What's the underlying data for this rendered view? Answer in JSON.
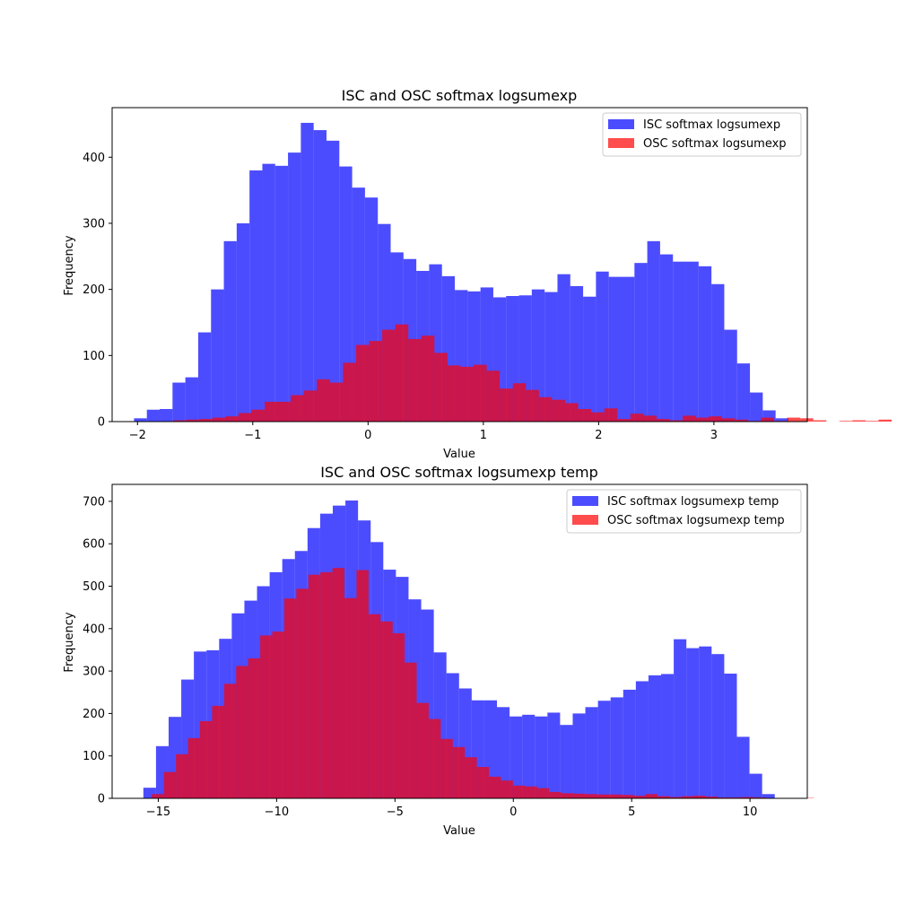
{
  "chart_data": [
    {
      "type": "bar",
      "title": "ISC and OSC softmax logsumexp",
      "xlabel": "Value",
      "ylabel": "Frequency",
      "xlim": [
        -2.22,
        3.81
      ],
      "ylim": [
        0,
        475
      ],
      "xticks": [
        -2,
        -1,
        0,
        1,
        2,
        3
      ],
      "yticks": [
        0,
        100,
        200,
        300,
        400
      ],
      "xtick_labels": [
        "−2",
        "−1",
        "0",
        "1",
        "2",
        "3"
      ],
      "ytick_labels": [
        "0",
        "100",
        "200",
        "300",
        "400"
      ],
      "legend_position": "top-right",
      "series": [
        {
          "name": "ISC softmax logsumexp",
          "color": "#0000ff",
          "opacity": 0.7,
          "x_start": -2.03,
          "bin_width": 0.1113,
          "values": [
            5,
            18,
            19,
            59,
            67,
            135,
            200,
            273,
            300,
            380,
            390,
            387,
            407,
            452,
            441,
            425,
            386,
            354,
            339,
            299,
            256,
            246,
            228,
            238,
            220,
            199,
            197,
            203,
            188,
            190,
            191,
            200,
            196,
            223,
            205,
            189,
            227,
            219,
            219,
            240,
            273,
            253,
            242,
            242,
            235,
            208,
            139,
            88,
            44,
            17,
            5
          ]
        },
        {
          "name": "OSC softmax logsumexp",
          "color": "#ff0000",
          "opacity": 0.7,
          "x_start": -1.69,
          "bin_width": 0.1133,
          "values": [
            2,
            3,
            4,
            6,
            8,
            13,
            18,
            30,
            30,
            40,
            47,
            64,
            59,
            89,
            116,
            122,
            139,
            147,
            125,
            130,
            104,
            85,
            83,
            86,
            77,
            50,
            58,
            48,
            37,
            33,
            28,
            19,
            14,
            20,
            4,
            12,
            9,
            4,
            2,
            9,
            6,
            8,
            5,
            3,
            1,
            6,
            1,
            6,
            5,
            2,
            0,
            1,
            2,
            1,
            3
          ]
        }
      ]
    },
    {
      "type": "bar",
      "title": "ISC and OSC softmax logsumexp temp",
      "xlabel": "Value",
      "ylabel": "Frequency",
      "xlim": [
        -16.95,
        12.42
      ],
      "ylim": [
        0,
        740
      ],
      "xticks": [
        -15,
        -10,
        -5,
        0,
        5,
        10
      ],
      "yticks": [
        0,
        100,
        200,
        300,
        400,
        500,
        600,
        700
      ],
      "xtick_labels": [
        "−15",
        "−10",
        "−5",
        "0",
        "5",
        "10"
      ],
      "ytick_labels": [
        "0",
        "100",
        "200",
        "300",
        "400",
        "500",
        "600",
        "700"
      ],
      "legend_position": "top-right",
      "series": [
        {
          "name": "ISC softmax logsumexp temp",
          "color": "#0000ff",
          "opacity": 0.7,
          "x_start": -15.63,
          "bin_width": 0.5335,
          "values": [
            25,
            123,
            192,
            280,
            346,
            349,
            376,
            436,
            466,
            500,
            533,
            564,
            583,
            637,
            671,
            690,
            702,
            655,
            604,
            539,
            522,
            469,
            445,
            344,
            295,
            259,
            231,
            231,
            215,
            193,
            197,
            193,
            202,
            173,
            200,
            215,
            230,
            238,
            256,
            276,
            290,
            293,
            375,
            354,
            358,
            340,
            294,
            145,
            58,
            10
          ]
        },
        {
          "name": "OSC softmax logsumexp temp",
          "color": "#ff0000",
          "opacity": 0.7,
          "x_start": -15.27,
          "bin_width": 0.5085,
          "values": [
            10,
            62,
            104,
            142,
            182,
            218,
            270,
            312,
            330,
            384,
            393,
            471,
            494,
            527,
            533,
            543,
            472,
            538,
            434,
            417,
            389,
            320,
            225,
            187,
            140,
            121,
            97,
            74,
            51,
            42,
            30,
            28,
            24,
            15,
            12,
            11,
            10,
            9,
            9,
            8,
            6,
            10,
            5,
            3,
            5,
            6,
            4,
            2,
            2,
            3,
            2,
            1,
            1,
            0,
            1
          ]
        }
      ]
    }
  ]
}
